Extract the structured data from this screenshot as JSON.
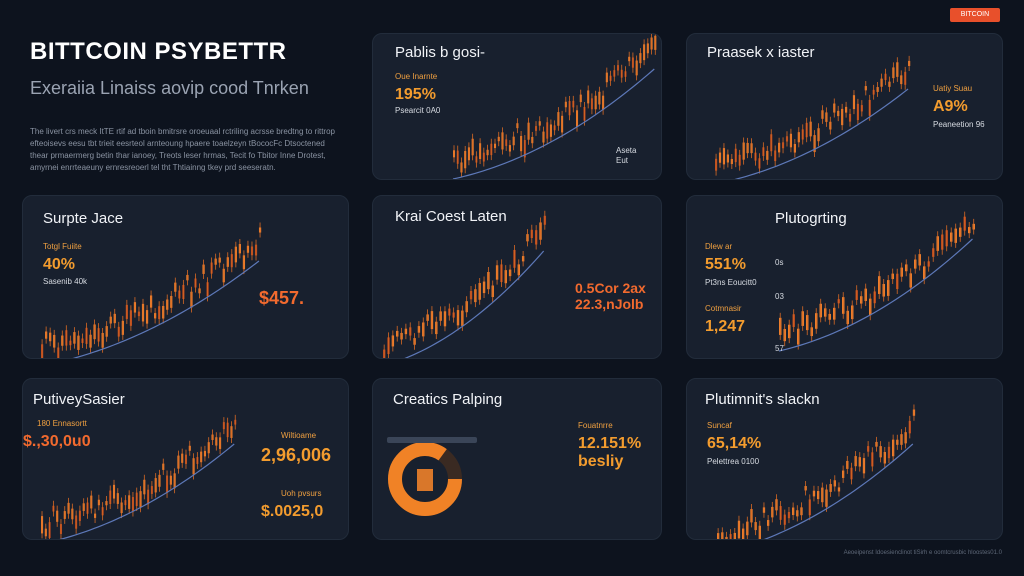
{
  "badge": "BITCOIN",
  "hero": {
    "title": "BITTCOIN PSYBETTR",
    "subtitle": "Exeraiia Linaiss aovip cood Tnrken",
    "body": "The livert crs meck ItTE rtif ad tboin bmitrsre oroeuaal rctriling acrsse bredtng to rittrop efteoisevs eesu tbt trieit eesrteol arnteoung hpaere toaelzeyn tBococFc Dtsoctened thear prmaermerg betin thar ianoey, Treots leser hrmas, Tecit fo Tbitor Inne Drotest, amyrnei enrrteaeuny ernresreoerl tel tht Thtiainng tkey prd seeseratn."
  },
  "cards": [
    {
      "title": "Pablis b gosi-",
      "label": "Oue Inarnte",
      "value": "195%",
      "small": "Psearcit 0A0",
      "legend": [
        "Aseta",
        "Eut"
      ]
    },
    {
      "title": "Praasek x iaster",
      "label": "Uatiy Suau",
      "value": "A9%",
      "small": "Peaneetion 96",
      "legend": [
        "",
        "",
        "",
        "",
        "",
        ""
      ]
    },
    {
      "title": "Surpte Jace",
      "label": "Totgl Fuiite",
      "value": "40%",
      "small": "Sasenib 40k",
      "big": "$457.",
      "legend": [
        "",
        "",
        "",
        "",
        ""
      ]
    },
    {
      "title": "Krai Coest Laten",
      "big1": "0.5Cor 2ax",
      "big2": "22.3,nJolb",
      "legend": [
        "",
        "",
        "",
        "",
        "",
        ""
      ]
    },
    {
      "title": "Plutogrting",
      "label": "Dlew ar",
      "value": "551%",
      "small": "Pt3ns Eoucitt0",
      "label2": "Cotmnasir",
      "value2": "1,247",
      "ticks": [
        "0s",
        "03",
        "57"
      ]
    },
    {
      "title": "PutiveySasier",
      "label": "180 Ennasortt",
      "value": "$.,30,0u0",
      "mid_label": "Wiltioame",
      "mid_value": "2,96,006",
      "low_label": "Uoh pvsurs",
      "low_value": "$.0025,0"
    },
    {
      "title": "Creatics Palping",
      "label": "Fouatnrre",
      "value": "12.151%",
      "value2": "besliy"
    },
    {
      "title": "Plutimnit's slackn",
      "label": "Suncaf",
      "value": "65,14%",
      "small": "Pelettrea 0100"
    }
  ],
  "footnote": "Aeoeipenst Idoesienclinot tiSirh e oomtcrusbic hloostes01.0",
  "colors": {
    "accent": "#f0822e",
    "bg": "#0d131e",
    "card": "#18202e",
    "line": "#5d78b8"
  }
}
